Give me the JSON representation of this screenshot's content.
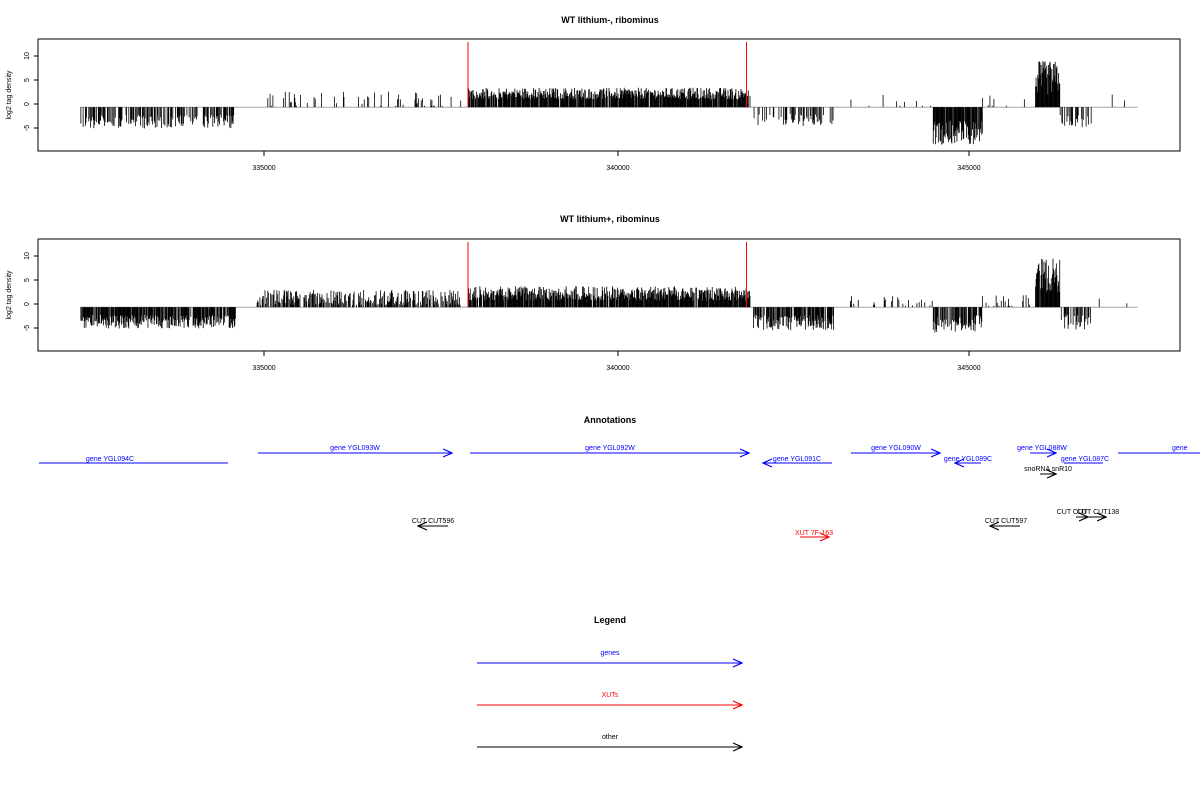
{
  "panels": [
    {
      "title": "WT lithium-, ribominus",
      "ylabel": "log2 tag density",
      "yticks": [
        "-5",
        "0",
        "5",
        "10"
      ],
      "xticks": [
        "335000",
        "340000",
        "345000"
      ]
    },
    {
      "title": "WT lithium+, ribominus",
      "ylabel": "log2 tag density",
      "yticks": [
        "-5",
        "0",
        "5",
        "10"
      ],
      "xticks": [
        "335000",
        "340000",
        "345000"
      ]
    }
  ],
  "annotations": {
    "title": "Annotations",
    "features": [
      {
        "label": "gene YGL094C",
        "start": 332000,
        "end": 334700,
        "strand": "-",
        "kind": "gene",
        "color": "#0000ff"
      },
      {
        "label": "gene YGL093W",
        "start": 334900,
        "end": 337700,
        "strand": "+",
        "kind": "gene",
        "color": "#0000ff"
      },
      {
        "label": "gene YGL092W",
        "start": 337900,
        "end": 341850,
        "strand": "+",
        "kind": "gene",
        "color": "#0000ff"
      },
      {
        "label": "gene YGL091C",
        "start": 342000,
        "end": 343000,
        "strand": "-",
        "kind": "gene",
        "color": "#0000ff"
      },
      {
        "label": "gene YGL090W",
        "start": 343300,
        "end": 344600,
        "strand": "+",
        "kind": "gene",
        "color": "#0000ff"
      },
      {
        "label": "gene YGL089C",
        "start": 344850,
        "end": 345200,
        "strand": "-",
        "kind": "gene",
        "color": "#0000ff"
      },
      {
        "label": "gene YGL088W",
        "start": 345800,
        "end": 346200,
        "strand": "+",
        "kind": "gene",
        "color": "#0000ff"
      },
      {
        "label": "gene YGL087C",
        "start": 346100,
        "end": 346700,
        "strand": "-",
        "kind": "gene",
        "color": "#0000ff"
      },
      {
        "label": "gene",
        "start": 346800,
        "end": 348000,
        "strand": "+",
        "kind": "gene",
        "color": "#0000ff"
      },
      {
        "label": "snoRNA snR10",
        "start": 345800,
        "end": 346100,
        "strand": "+",
        "kind": "other",
        "color": "#000000"
      },
      {
        "label": "CUT CUT596",
        "start": 337300,
        "end": 337750,
        "strand": "-",
        "kind": "other",
        "color": "#000000"
      },
      {
        "label": "CUT CUT597",
        "start": 345250,
        "end": 345700,
        "strand": "-",
        "kind": "other",
        "color": "#000000"
      },
      {
        "label": "CUT CUT138",
        "start": 346300,
        "end": 346500,
        "strand": "+",
        "kind": "other",
        "color": "#000000"
      },
      {
        "label": "CUT CUT",
        "start": 346350,
        "end": 346700,
        "strand": "+",
        "kind": "other",
        "color": "#000000"
      },
      {
        "label": "XUT 7F-163",
        "start": 342550,
        "end": 342950,
        "strand": "+",
        "kind": "xut",
        "color": "#ff0000"
      }
    ]
  },
  "legend": {
    "title": "Legend",
    "items": [
      {
        "label": "genes",
        "color": "#0000ff"
      },
      {
        "label": "XUTs",
        "color": "#ff0000"
      },
      {
        "label": "other",
        "color": "#000000"
      }
    ]
  },
  "chart_data": [
    {
      "type": "bar",
      "title": "WT lithium-, ribominus",
      "xlabel": "",
      "ylabel": "log2 tag density",
      "xlim": [
        331800,
        348000
      ],
      "ylim": [
        -9,
        14
      ],
      "xticks": [
        335000,
        340000,
        345000
      ],
      "yticks": [
        -5,
        0,
        5,
        10
      ],
      "reference_lines_x": [
        337900,
        341850
      ],
      "reference_color": "#ff0000",
      "segments": [
        {
          "start": 332400,
          "end": 334600,
          "mean": -3.0,
          "jitter": 1.4,
          "sign": -1,
          "density": 0.55
        },
        {
          "start": 334900,
          "end": 337800,
          "mean": 1.5,
          "jitter": 1.8,
          "sign": 1,
          "density": 0.14
        },
        {
          "start": 337900,
          "end": 341900,
          "mean": 2.8,
          "jitter": 1.2,
          "sign": 1,
          "density": 0.9
        },
        {
          "start": 341950,
          "end": 343100,
          "mean": -2.6,
          "jitter": 1.3,
          "sign": -1,
          "density": 0.4
        },
        {
          "start": 343300,
          "end": 344500,
          "mean": 1.2,
          "jitter": 1.4,
          "sign": 1,
          "density": 0.06
        },
        {
          "start": 344500,
          "end": 345200,
          "mean": -5.2,
          "jitter": 2.5,
          "sign": -1,
          "density": 0.95
        },
        {
          "start": 345200,
          "end": 345900,
          "mean": 1.0,
          "jitter": 1.5,
          "sign": 1,
          "density": 0.1
        },
        {
          "start": 345950,
          "end": 346300,
          "mean": 6.0,
          "jitter": 3.5,
          "sign": 1,
          "density": 0.98
        },
        {
          "start": 346300,
          "end": 346750,
          "mean": -2.8,
          "jitter": 1.4,
          "sign": -1,
          "density": 0.45
        },
        {
          "start": 346750,
          "end": 347400,
          "mean": 1.4,
          "jitter": 1.3,
          "sign": 1,
          "density": 0.03
        }
      ]
    },
    {
      "type": "bar",
      "title": "WT lithium+, ribominus",
      "xlabel": "",
      "ylabel": "log2 tag density",
      "xlim": [
        331800,
        348000
      ],
      "ylim": [
        -9,
        14
      ],
      "xticks": [
        335000,
        340000,
        345000
      ],
      "yticks": [
        -5,
        0,
        5,
        10
      ],
      "reference_lines_x": [
        337900,
        341850
      ],
      "reference_color": "#ff0000",
      "segments": [
        {
          "start": 332400,
          "end": 334600,
          "mean": -3.0,
          "jitter": 1.4,
          "sign": -1,
          "density": 0.85
        },
        {
          "start": 334900,
          "end": 337800,
          "mean": 2.0,
          "jitter": 1.6,
          "sign": 1,
          "density": 0.6
        },
        {
          "start": 337900,
          "end": 341900,
          "mean": 2.8,
          "jitter": 1.5,
          "sign": 1,
          "density": 0.92
        },
        {
          "start": 341950,
          "end": 343100,
          "mean": -3.2,
          "jitter": 1.6,
          "sign": -1,
          "density": 0.75
        },
        {
          "start": 343300,
          "end": 344500,
          "mean": 1.3,
          "jitter": 1.0,
          "sign": 1,
          "density": 0.2
        },
        {
          "start": 344500,
          "end": 345200,
          "mean": -3.4,
          "jitter": 1.8,
          "sign": -1,
          "density": 0.7
        },
        {
          "start": 345200,
          "end": 345900,
          "mean": 1.3,
          "jitter": 1.2,
          "sign": 1,
          "density": 0.18
        },
        {
          "start": 345950,
          "end": 346300,
          "mean": 6.5,
          "jitter": 3.5,
          "sign": 1,
          "density": 0.98
        },
        {
          "start": 346300,
          "end": 346750,
          "mean": -3.0,
          "jitter": 1.6,
          "sign": -1,
          "density": 0.55
        },
        {
          "start": 346750,
          "end": 347400,
          "mean": 1.2,
          "jitter": 1.0,
          "sign": 1,
          "density": 0.05
        }
      ]
    }
  ]
}
